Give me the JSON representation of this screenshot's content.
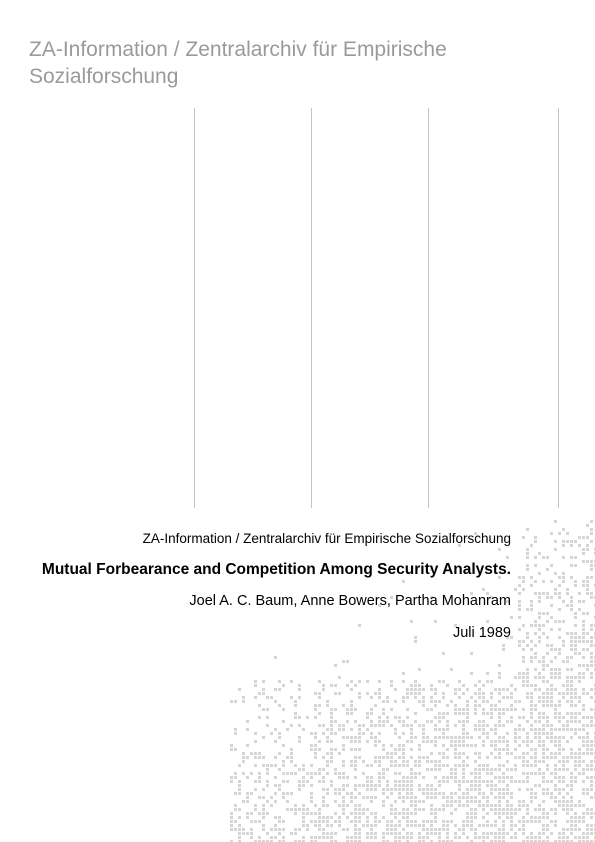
{
  "header": {
    "title": "ZA-Information / Zentralarchiv für Empirische Sozialforschung"
  },
  "document": {
    "publisher_line": "ZA-Information / Zentralarchiv für Empirische Sozialforschung",
    "title": "Mutual Forbearance and Competition Among Security Analysts.",
    "authors": "Joel A. C. Baum, Anne Bowers, Partha Mohanram",
    "date": "Juli 1989"
  },
  "colors": {
    "header_text": "#9a9a9a",
    "rule": "#c4c4c4",
    "dots": "#d6d6d6"
  }
}
